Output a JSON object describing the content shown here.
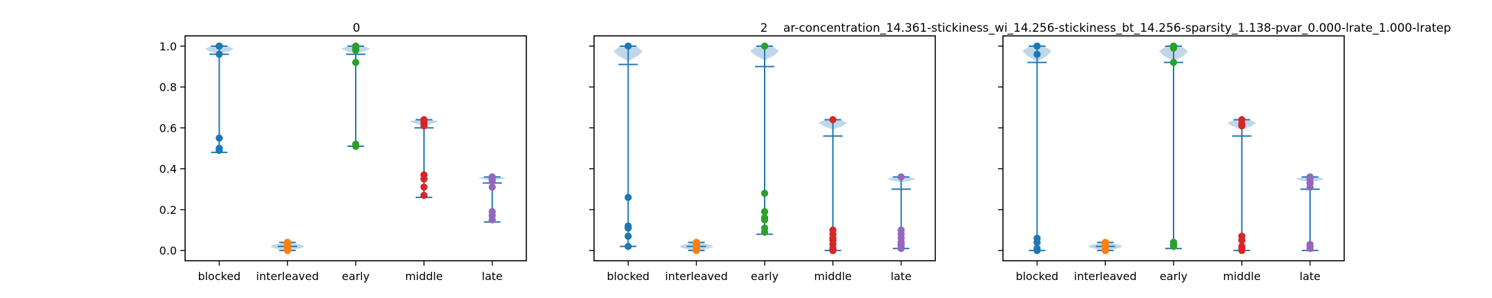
{
  "figure": {
    "title_left": "0",
    "title_right": "2",
    "title_long": "ar-concentration_14.361-stickiness_wi_14.256-stickiness_bt_14.256-sparsity_1.138-pvar_0.000-lrate_1.000-lratep"
  },
  "colors": {
    "body": "#bdd5ea",
    "line": "#1f77b4",
    "points": [
      "#1f77b4",
      "#ff7f0e",
      "#2ca02c",
      "#d62728",
      "#9467bd"
    ]
  },
  "chart_data": [
    {
      "type": "violin",
      "title": "0",
      "categories": [
        "blocked",
        "interleaved",
        "early",
        "middle",
        "late"
      ],
      "ylim": [
        -0.05,
        1.05
      ],
      "yticks": [
        "0.0",
        "0.2",
        "0.4",
        "0.6",
        "0.8",
        "1.0"
      ],
      "series": [
        {
          "category": "blocked",
          "min": 0.48,
          "max": 1.0,
          "mean": 0.96,
          "points": [
            1.0,
            1.0,
            0.96,
            0.55,
            0.5,
            0.49
          ]
        },
        {
          "category": "interleaved",
          "min": 0.0,
          "max": 0.04,
          "mean": 0.02,
          "points": [
            0.0,
            0.01,
            0.02,
            0.03,
            0.04
          ]
        },
        {
          "category": "early",
          "min": 0.51,
          "max": 1.0,
          "mean": 0.96,
          "points": [
            1.0,
            0.99,
            0.98,
            0.92,
            0.52,
            0.51
          ]
        },
        {
          "category": "middle",
          "min": 0.26,
          "max": 0.64,
          "mean": 0.6,
          "points": [
            0.64,
            0.63,
            0.62,
            0.61,
            0.37,
            0.35,
            0.31,
            0.27
          ]
        },
        {
          "category": "late",
          "min": 0.14,
          "max": 0.36,
          "mean": 0.33,
          "points": [
            0.36,
            0.35,
            0.34,
            0.31,
            0.19,
            0.17,
            0.15
          ]
        }
      ]
    },
    {
      "type": "violin",
      "categories": [
        "blocked",
        "interleaved",
        "early",
        "middle",
        "late"
      ],
      "ylim": [
        -0.05,
        1.05
      ],
      "series": [
        {
          "category": "blocked",
          "min": 0.02,
          "max": 1.0,
          "mean": 0.91,
          "points": [
            1.0,
            0.26,
            0.12,
            0.11,
            0.07,
            0.02
          ]
        },
        {
          "category": "interleaved",
          "min": 0.0,
          "max": 0.04,
          "mean": 0.02,
          "points": [
            0.0,
            0.01,
            0.02,
            0.03,
            0.04
          ]
        },
        {
          "category": "early",
          "min": 0.08,
          "max": 1.0,
          "mean": 0.9,
          "points": [
            1.0,
            0.28,
            0.19,
            0.16,
            0.15,
            0.11,
            0.09
          ]
        },
        {
          "category": "middle",
          "min": 0.0,
          "max": 0.64,
          "mean": 0.56,
          "points": [
            0.64,
            0.1,
            0.08,
            0.06,
            0.05,
            0.03,
            0.01,
            0.0
          ]
        },
        {
          "category": "late",
          "min": 0.01,
          "max": 0.36,
          "mean": 0.3,
          "points": [
            0.36,
            0.1,
            0.08,
            0.06,
            0.04,
            0.03,
            0.02,
            0.01
          ]
        }
      ]
    },
    {
      "type": "violin",
      "title": "2",
      "categories": [
        "blocked",
        "interleaved",
        "early",
        "middle",
        "late"
      ],
      "ylim": [
        -0.05,
        1.05
      ],
      "series": [
        {
          "category": "blocked",
          "min": 0.0,
          "max": 1.0,
          "mean": 0.92,
          "points": [
            1.0,
            0.96,
            0.06,
            0.04,
            0.01,
            0.0
          ]
        },
        {
          "category": "interleaved",
          "min": 0.0,
          "max": 0.04,
          "mean": 0.02,
          "points": [
            0.0,
            0.01,
            0.02,
            0.03,
            0.04
          ]
        },
        {
          "category": "early",
          "min": 0.01,
          "max": 1.0,
          "mean": 0.92,
          "points": [
            1.0,
            0.99,
            0.92,
            0.04,
            0.03,
            0.02
          ]
        },
        {
          "category": "middle",
          "min": 0.0,
          "max": 0.64,
          "mean": 0.56,
          "points": [
            0.64,
            0.62,
            0.61,
            0.07,
            0.05,
            0.02,
            0.01,
            0.0
          ]
        },
        {
          "category": "late",
          "min": 0.0,
          "max": 0.36,
          "mean": 0.3,
          "points": [
            0.36,
            0.35,
            0.33,
            0.31,
            0.03,
            0.02,
            0.01
          ]
        }
      ]
    }
  ]
}
